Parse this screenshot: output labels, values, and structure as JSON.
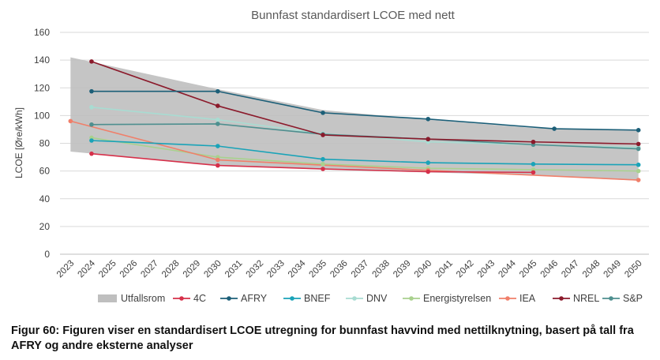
{
  "chart_data": {
    "type": "line",
    "title": "Bunnfast standardisert LCOE med nett",
    "ylabel": "LCOE [Øre/kWh]",
    "xlabel": "",
    "ylim": [
      0,
      160
    ],
    "yticks": [
      0,
      20,
      40,
      60,
      80,
      100,
      120,
      140,
      160
    ],
    "categories": [
      "2023",
      "2024",
      "2025",
      "2026",
      "2027",
      "2028",
      "2029",
      "2030",
      "2031",
      "2032",
      "2033",
      "2034",
      "2035",
      "2036",
      "2037",
      "2038",
      "2039",
      "2040",
      "2041",
      "2042",
      "2043",
      "2044",
      "2045",
      "2046",
      "2047",
      "2048",
      "2049",
      "2050"
    ],
    "grid": "horizontal",
    "legend_position": "bottom",
    "range_band": {
      "name": "Utfallsrom",
      "color": "#bfbfbf",
      "x": [
        "2023",
        "2030",
        "2035",
        "2040",
        "2045",
        "2050"
      ],
      "upper": [
        142,
        119,
        104,
        97,
        91,
        89
      ],
      "lower": [
        74,
        64,
        61,
        59,
        57,
        53
      ]
    },
    "series": [
      {
        "name": "4C",
        "color": "#d6304a",
        "x": [
          "2024",
          "2030",
          "2035",
          "2040",
          "2045"
        ],
        "values": [
          72.5,
          64,
          61.5,
          59.5,
          59
        ]
      },
      {
        "name": "AFRY",
        "color": "#1c5f78",
        "x": [
          "2024",
          "2030",
          "2035",
          "2040",
          "2046",
          "2050"
        ],
        "values": [
          117.5,
          117.5,
          102,
          97.5,
          90.5,
          89.5
        ]
      },
      {
        "name": "BNEF",
        "color": "#1aa3b8",
        "x": [
          "2024",
          "2030",
          "2035",
          "2040",
          "2045",
          "2050"
        ],
        "values": [
          82,
          78,
          68.5,
          66,
          65,
          64.5
        ]
      },
      {
        "name": "DNV",
        "color": "#a8dcd2",
        "x": [
          "2024",
          "2030",
          "2035",
          "2040",
          "2045",
          "2050"
        ],
        "values": [
          106,
          97,
          87,
          81,
          79,
          77
        ]
      },
      {
        "name": "Energistyrelsen",
        "color": "#a9d18e",
        "x": [
          "2024",
          "2030",
          "2035",
          "2040",
          "2045",
          "2050"
        ],
        "values": [
          84,
          70,
          65,
          62,
          61,
          60
        ]
      },
      {
        "name": "IEA",
        "color": "#f07f6a",
        "x": [
          "2023",
          "2030",
          "2040",
          "2050"
        ],
        "values": [
          96,
          68,
          60.5,
          53.5
        ]
      },
      {
        "name": "NREL",
        "color": "#8b1a2b",
        "x": [
          "2024",
          "2030",
          "2035",
          "2040",
          "2045",
          "2050"
        ],
        "values": [
          139,
          107,
          86,
          83,
          81,
          79.5
        ]
      },
      {
        "name": "S&P",
        "color": "#4e8f8f",
        "x": [
          "2024",
          "2030",
          "2035",
          "2040",
          "2045",
          "2050"
        ],
        "values": [
          93.5,
          94,
          86.5,
          83,
          79,
          76
        ]
      }
    ]
  },
  "caption": "Figur 60: Figuren viser en standardisert LCOE utregning for bunnfast havvind med nettilknytning, basert på tall fra AFRY og andre eksterne analyser"
}
